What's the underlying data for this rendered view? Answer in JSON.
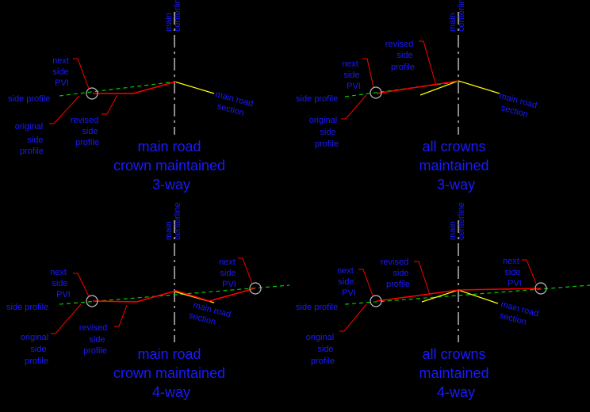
{
  "colors": {
    "background": "#000000",
    "label": "#1a1aff",
    "leader": "#ff0000",
    "revised_profile": "#ff0000",
    "side_profile": "#00cc00",
    "main_road_section": "#ffff00",
    "centerline": "#bbbbbb",
    "pvi_circle": "#bbbbbb"
  },
  "labels": {
    "centerline": [
      "main",
      "centerline"
    ],
    "next_side_pvi": [
      "next",
      "side",
      "PVI"
    ],
    "side_profile": "side profile",
    "original_side_profile": [
      "original",
      "side",
      "profile"
    ],
    "revised_side_profile": [
      "revised",
      "side",
      "profile"
    ],
    "main_road_section": [
      "main road",
      "section"
    ]
  },
  "panels": [
    {
      "id": "tl",
      "caption": [
        "main road",
        "crown maintained",
        "3-way"
      ]
    },
    {
      "id": "tr",
      "caption": [
        "all crowns",
        "maintained",
        "3-way"
      ]
    },
    {
      "id": "bl",
      "caption": [
        "main road",
        "crown maintained",
        "4-way"
      ]
    },
    {
      "id": "br",
      "caption": [
        "all crowns",
        "maintained",
        "4-way"
      ]
    }
  ]
}
